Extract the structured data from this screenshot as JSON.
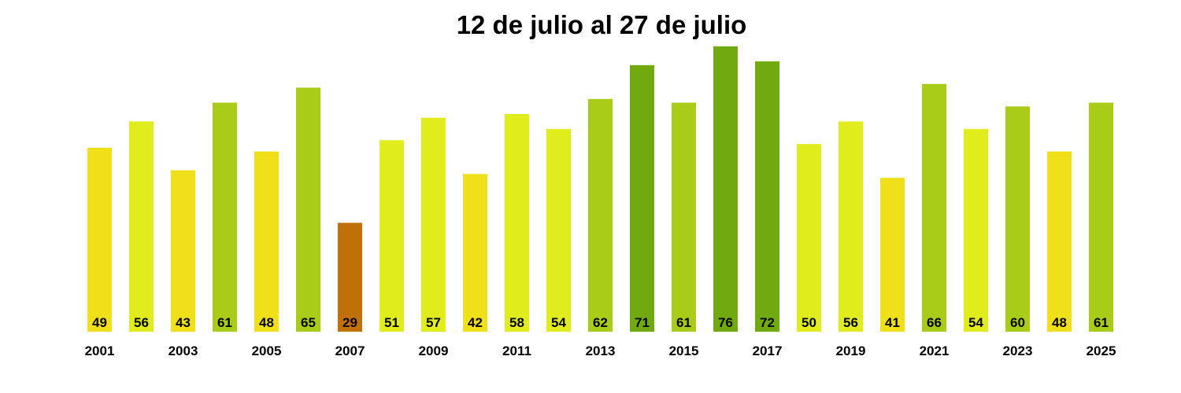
{
  "chart_data": {
    "type": "bar",
    "title": "12 de julio al 27 de julio",
    "xlabel": "",
    "ylabel": "",
    "categories": [
      "2001",
      "2002",
      "2003",
      "2004",
      "2005",
      "2006",
      "2007",
      "2008",
      "2009",
      "2010",
      "2011",
      "2012",
      "2013",
      "2014",
      "2015",
      "2016",
      "2017",
      "2018",
      "2019",
      "2020",
      "2021",
      "2022",
      "2023",
      "2024",
      "2025"
    ],
    "values": [
      49,
      56,
      43,
      61,
      48,
      65,
      29,
      51,
      57,
      42,
      58,
      54,
      62,
      71,
      61,
      76,
      72,
      50,
      56,
      41,
      66,
      54,
      60,
      48,
      61
    ],
    "x_tick_labels": [
      "2001",
      "2003",
      "2005",
      "2007",
      "2009",
      "2011",
      "2013",
      "2015",
      "2017",
      "2019",
      "2021",
      "2023",
      "2025"
    ],
    "ylim": [
      0,
      76
    ],
    "grid": false,
    "legend": "none",
    "value_labels_position": "bottom-inside",
    "colors": {
      "low": "#c07008",
      "mid_low": "#f0e01a",
      "mid": "#e0ec1c",
      "mid_high": "#a8cc18",
      "high": "#70aa10",
      "text": "#000000",
      "background": "#ffffff"
    }
  }
}
